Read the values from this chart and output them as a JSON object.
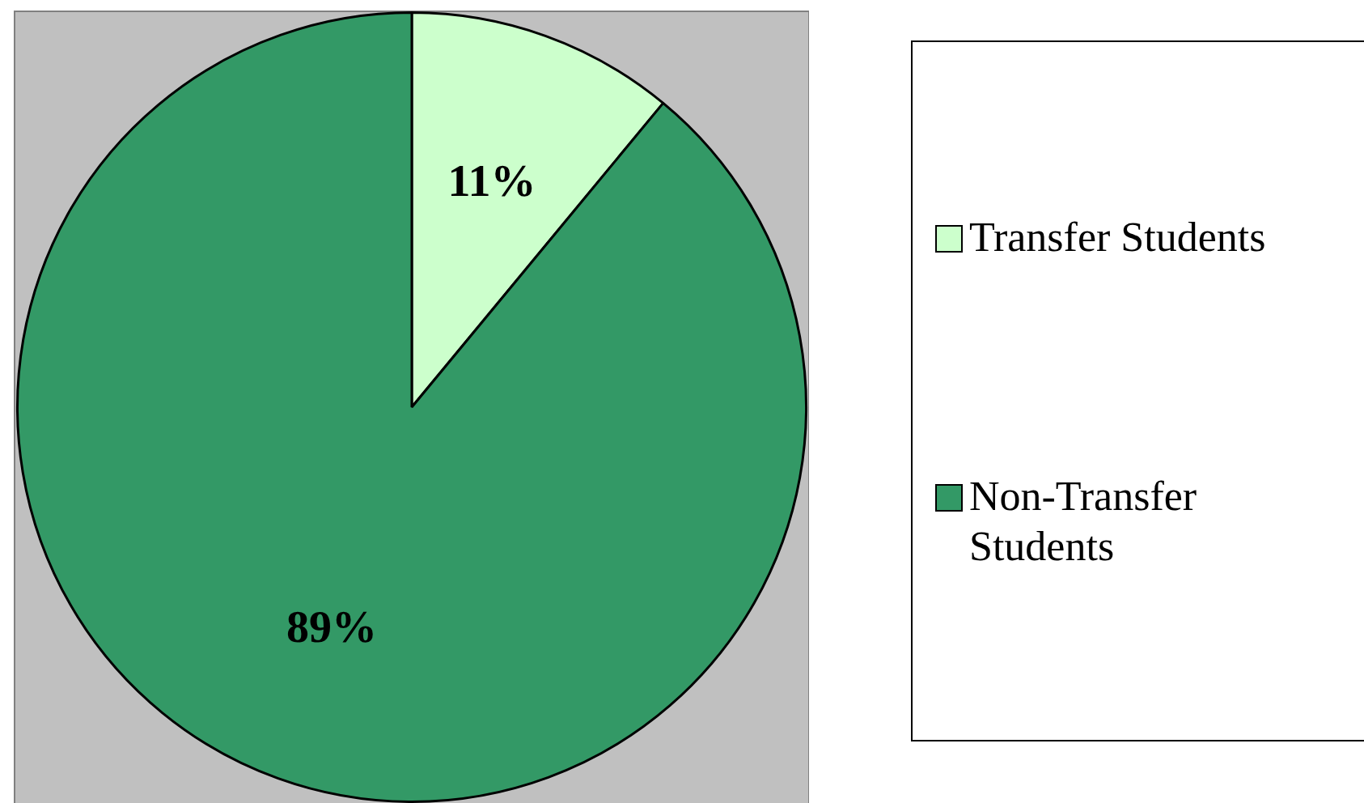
{
  "chart_data": {
    "type": "pie",
    "categories": [
      "Transfer Students",
      "Non-Transfer Students"
    ],
    "values": [
      11,
      89
    ],
    "colors": [
      "#ccffcc",
      "#339966"
    ],
    "value_labels": [
      "11%",
      "89%"
    ],
    "legend": "right"
  }
}
